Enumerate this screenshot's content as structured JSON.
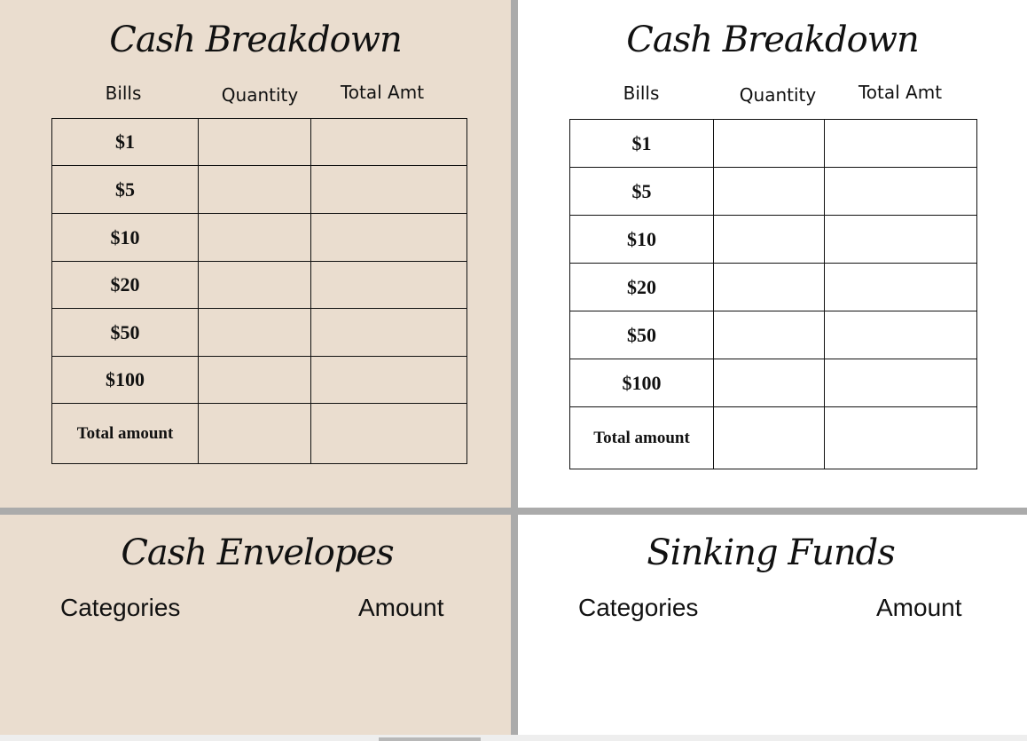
{
  "panels": [
    {
      "title": "Cash Breakdown",
      "headers": [
        "Bills",
        "Quantity",
        "Total Amt"
      ],
      "rows": [
        "$1",
        "$5",
        "$10",
        "$20",
        "$50",
        "$100",
        "Total amount"
      ]
    },
    {
      "title": "Cash Breakdown",
      "headers": [
        "Bills",
        "Quantity",
        "Total Amt"
      ],
      "rows": [
        "$1",
        "$5",
        "$10",
        "$20",
        "$50",
        "$100",
        "Total amount"
      ]
    },
    {
      "title": "Cash Envelopes",
      "columns": [
        "Categories",
        "Amount"
      ]
    },
    {
      "title": "Sinking Funds",
      "columns": [
        "Categories",
        "Amount"
      ]
    }
  ],
  "colors": {
    "beige": "#eaddcf",
    "white": "#ffffff",
    "divider": "#ababab"
  }
}
